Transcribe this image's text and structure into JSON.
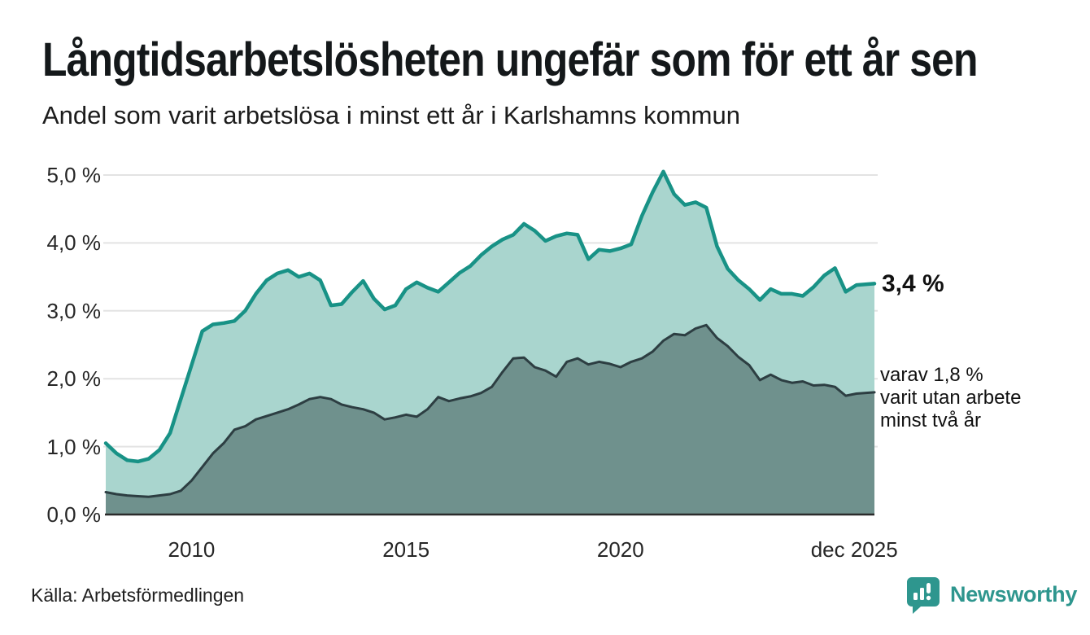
{
  "header": {
    "title": "Långtidsarbetslösheten ungefär som för ett år sen",
    "subtitle": "Andel som varit arbetslösa i minst ett år i Karlshamns kommun"
  },
  "annotations": {
    "latest_value": "3,4 %",
    "secondary_line1": "varav 1,8 %",
    "secondary_line2": "varit utan arbete",
    "secondary_line3": "minst två år"
  },
  "footer": {
    "source": "Källa: Arbetsförmedlingen",
    "brand": "Newsworthy"
  },
  "colors": {
    "series1_line": "#189286",
    "series1_fill": "#a9d5ce",
    "series2_line": "#2d3e42",
    "series2_fill": "#6f918d",
    "grid": "#e3e3e3",
    "axis": "#2b2b2b",
    "brand": "#2e968e"
  },
  "chart_data": {
    "type": "area",
    "title": "Långtidsarbetslösheten ungefär som för ett år sen",
    "subtitle": "Andel som varit arbetslösa i minst ett år i Karlshamns kommun",
    "unit": "%",
    "grid": "horizontal",
    "legend_position": "right-edge-annotations",
    "xlim": [
      2008,
      2025.92
    ],
    "ylim": [
      0,
      5.3
    ],
    "x": [
      2008.0,
      2008.25,
      2008.5,
      2008.75,
      2009.0,
      2009.25,
      2009.5,
      2009.75,
      2010.0,
      2010.25,
      2010.5,
      2010.75,
      2011.0,
      2011.25,
      2011.5,
      2011.75,
      2012.0,
      2012.25,
      2012.5,
      2012.75,
      2013.0,
      2013.25,
      2013.5,
      2013.75,
      2014.0,
      2014.25,
      2014.5,
      2014.75,
      2015.0,
      2015.25,
      2015.5,
      2015.75,
      2016.0,
      2016.25,
      2016.5,
      2016.75,
      2017.0,
      2017.25,
      2017.5,
      2017.75,
      2018.0,
      2018.25,
      2018.5,
      2018.75,
      2019.0,
      2019.25,
      2019.5,
      2019.75,
      2020.0,
      2020.25,
      2020.5,
      2020.75,
      2021.0,
      2021.25,
      2021.5,
      2021.75,
      2022.0,
      2022.25,
      2022.5,
      2022.75,
      2023.0,
      2023.25,
      2023.5,
      2023.75,
      2024.0,
      2024.25,
      2024.5,
      2024.75,
      2025.0,
      2025.25,
      2025.5,
      2025.92
    ],
    "series": [
      {
        "name": "Arbetslösa minst ett år",
        "end_value_label": "3,4 %",
        "values": [
          1.05,
          0.9,
          0.8,
          0.78,
          0.82,
          0.95,
          1.2,
          1.7,
          2.2,
          2.7,
          2.8,
          2.82,
          2.85,
          3.0,
          3.25,
          3.45,
          3.55,
          3.6,
          3.5,
          3.55,
          3.45,
          3.08,
          3.1,
          3.28,
          3.44,
          3.18,
          3.02,
          3.08,
          3.32,
          3.42,
          3.34,
          3.28,
          3.42,
          3.56,
          3.66,
          3.82,
          3.95,
          4.05,
          4.12,
          4.28,
          4.18,
          4.03,
          4.1,
          4.14,
          4.12,
          3.76,
          3.9,
          3.88,
          3.92,
          3.98,
          4.4,
          4.75,
          5.05,
          4.72,
          4.56,
          4.6,
          4.52,
          3.95,
          3.62,
          3.45,
          3.32,
          3.16,
          3.32,
          3.25,
          3.25,
          3.22,
          3.35,
          3.52,
          3.63,
          3.28,
          3.38,
          3.4
        ]
      },
      {
        "name": "Arbetslösa minst två år",
        "end_value_label": "1,8 %",
        "values": [
          0.33,
          0.3,
          0.28,
          0.27,
          0.26,
          0.28,
          0.3,
          0.35,
          0.5,
          0.7,
          0.9,
          1.05,
          1.25,
          1.3,
          1.4,
          1.45,
          1.5,
          1.55,
          1.62,
          1.7,
          1.73,
          1.7,
          1.62,
          1.58,
          1.55,
          1.5,
          1.4,
          1.43,
          1.47,
          1.44,
          1.55,
          1.73,
          1.67,
          1.71,
          1.74,
          1.79,
          1.88,
          2.1,
          2.3,
          2.31,
          2.17,
          2.12,
          2.03,
          2.25,
          2.3,
          2.21,
          2.25,
          2.22,
          2.17,
          2.25,
          2.3,
          2.4,
          2.56,
          2.66,
          2.64,
          2.74,
          2.79,
          2.6,
          2.48,
          2.32,
          2.2,
          1.98,
          2.06,
          1.98,
          1.94,
          1.96,
          1.9,
          1.91,
          1.88,
          1.75,
          1.78,
          1.8
        ]
      }
    ],
    "y_ticks": [
      {
        "label": "0,0 %",
        "value": 0
      },
      {
        "label": "1,0 %",
        "value": 1
      },
      {
        "label": "2,0 %",
        "value": 2
      },
      {
        "label": "3,0 %",
        "value": 3
      },
      {
        "label": "4,0 %",
        "value": 4
      },
      {
        "label": "5,0 %",
        "value": 5
      }
    ],
    "x_ticks": [
      {
        "label": "2010",
        "value": 2010
      },
      {
        "label": "2015",
        "value": 2015
      },
      {
        "label": "2020",
        "value": 2020
      },
      {
        "label": "dec 2025",
        "value": 2025.45
      }
    ]
  }
}
